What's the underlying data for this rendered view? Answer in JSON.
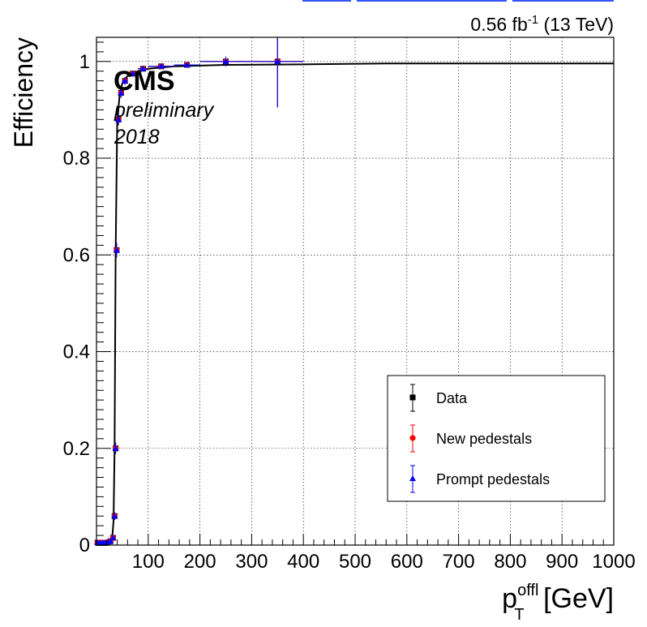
{
  "chart_data": {
    "type": "scatter",
    "title": "",
    "lumi_label": {
      "prefix": "0.56 fb",
      "sup": "-1",
      "suffix": " (13 TeV)"
    },
    "experiment_label": "CMS",
    "extra_labels": [
      "preliminary",
      "2018"
    ],
    "xlabel": {
      "base": "p",
      "sup": "offl",
      "sub": "T",
      "unit": " [GeV]"
    },
    "ylabel": "Efficiency",
    "xlim": [
      0,
      1000
    ],
    "ylim": [
      0,
      1.05
    ],
    "xticks": [
      100,
      200,
      300,
      400,
      500,
      600,
      700,
      800,
      900,
      1000
    ],
    "yticks": [
      0,
      0.2,
      0.4,
      0.6,
      0.8,
      1
    ],
    "ytick_labels": [
      "0",
      "0.2",
      "0.4",
      "0.6",
      "0.8",
      "1"
    ],
    "grid": true,
    "legend_position": "bottom-right",
    "colors": {
      "data": "#000000",
      "new": "#ff0000",
      "prompt": "#0000ff"
    },
    "fit_curve": {
      "x": [
        0,
        20,
        25,
        30,
        33,
        35,
        37,
        40,
        45,
        50,
        60,
        80,
        100,
        150,
        250,
        400,
        560,
        1000
      ],
      "y": [
        0.0,
        0.0,
        0.002,
        0.01,
        0.05,
        0.2,
        0.6,
        0.87,
        0.935,
        0.955,
        0.97,
        0.98,
        0.985,
        0.99,
        0.993,
        0.994,
        0.996,
        0.996
      ]
    },
    "series": [
      {
        "name": "Data",
        "marker": "square",
        "color": "#000000",
        "x": [
          2,
          7,
          12,
          17,
          22,
          27,
          32,
          35,
          37,
          39,
          42.5,
          47.5,
          55,
          70,
          90,
          125,
          175,
          250,
          350
        ],
        "xerr": [
          2,
          2.5,
          2.5,
          2.5,
          2.5,
          2.5,
          2.5,
          1,
          1,
          1,
          2.5,
          2.5,
          5,
          10,
          10,
          25,
          25,
          50,
          50
        ],
        "y": [
          0.005,
          0.005,
          0.005,
          0.005,
          0.005,
          0.008,
          0.015,
          0.06,
          0.2,
          0.61,
          0.88,
          0.935,
          0.96,
          0.975,
          0.985,
          0.99,
          0.993,
          1.0,
          1.0
        ],
        "yerr": [
          0.002,
          0.002,
          0.002,
          0.002,
          0.002,
          0.003,
          0.004,
          0.008,
          0.012,
          0.015,
          0.012,
          0.01,
          0.008,
          0.006,
          0.005,
          0.005,
          0.005,
          0.01,
          0.095
        ]
      },
      {
        "name": "New pedestals",
        "marker": "circle",
        "color": "#ff0000",
        "x": [
          2,
          7,
          12,
          17,
          22,
          27,
          32,
          35,
          37,
          39,
          42.5,
          47.5,
          55,
          70,
          90,
          125,
          175,
          250,
          350
        ],
        "xerr": [
          2,
          2.5,
          2.5,
          2.5,
          2.5,
          2.5,
          2.5,
          1,
          1,
          1,
          2.5,
          2.5,
          5,
          10,
          10,
          25,
          25,
          50,
          50
        ],
        "y": [
          0.005,
          0.005,
          0.005,
          0.005,
          0.005,
          0.008,
          0.015,
          0.06,
          0.2,
          0.61,
          0.88,
          0.935,
          0.96,
          0.975,
          0.985,
          0.99,
          0.993,
          1.0,
          1.0
        ],
        "yerr": [
          0.002,
          0.002,
          0.002,
          0.002,
          0.002,
          0.003,
          0.004,
          0.008,
          0.012,
          0.015,
          0.012,
          0.01,
          0.008,
          0.006,
          0.005,
          0.005,
          0.005,
          0.01,
          0.095
        ]
      },
      {
        "name": "Prompt pedestals",
        "marker": "triangle",
        "color": "#0000ff",
        "x": [
          2,
          7,
          12,
          17,
          22,
          27,
          32,
          35,
          37,
          39,
          42.5,
          47.5,
          55,
          70,
          90,
          125,
          175,
          250,
          350
        ],
        "xerr": [
          2,
          2.5,
          2.5,
          2.5,
          2.5,
          2.5,
          2.5,
          1,
          1,
          1,
          2.5,
          2.5,
          5,
          10,
          10,
          25,
          25,
          50,
          50
        ],
        "y": [
          0.005,
          0.005,
          0.005,
          0.005,
          0.005,
          0.008,
          0.015,
          0.06,
          0.2,
          0.61,
          0.88,
          0.935,
          0.96,
          0.975,
          0.985,
          0.99,
          0.993,
          1.0,
          1.0
        ],
        "yerr": [
          0.002,
          0.002,
          0.002,
          0.002,
          0.002,
          0.003,
          0.004,
          0.008,
          0.012,
          0.015,
          0.012,
          0.01,
          0.008,
          0.006,
          0.005,
          0.005,
          0.005,
          0.01,
          0.095
        ]
      }
    ]
  }
}
